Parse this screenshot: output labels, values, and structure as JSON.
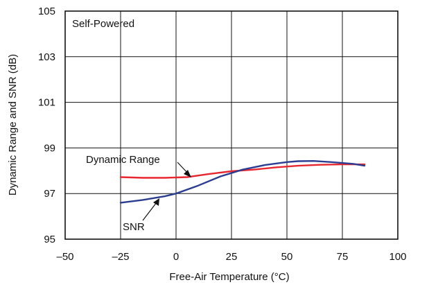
{
  "chart_data": {
    "type": "line",
    "title": "",
    "annotation": "Self-Powered",
    "xlabel": "Free-Air Temperature (°C)",
    "ylabel": "Dynamic Range and SNR (dB)",
    "xlim": [
      -50,
      100
    ],
    "ylim": [
      95,
      105
    ],
    "xticks": [
      -50,
      -25,
      0,
      25,
      50,
      75,
      100
    ],
    "xtick_labels": [
      "–50",
      "–25",
      "0",
      "25",
      "50",
      "75",
      "100"
    ],
    "yticks": [
      95,
      97,
      99,
      101,
      103,
      105
    ],
    "ytick_labels": [
      "95",
      "97",
      "99",
      "101",
      "103",
      "105"
    ],
    "grid": true,
    "series": [
      {
        "name": "Dynamic Range",
        "color": "#e8262f",
        "x": [
          -25,
          -15,
          -5,
          5,
          15,
          25,
          35,
          45,
          55,
          65,
          75,
          85
        ],
        "y": [
          97.72,
          97.69,
          97.69,
          97.72,
          97.86,
          97.98,
          98.05,
          98.15,
          98.22,
          98.26,
          98.28,
          98.28
        ]
      },
      {
        "name": "SNR",
        "color": "#2a3d91",
        "x": [
          -25,
          -15,
          -5,
          0,
          10,
          20,
          30,
          40,
          50,
          55,
          62,
          70,
          80,
          85
        ],
        "y": [
          96.6,
          96.72,
          96.88,
          97.0,
          97.35,
          97.75,
          98.05,
          98.25,
          98.38,
          98.42,
          98.43,
          98.38,
          98.3,
          98.22
        ]
      }
    ]
  }
}
